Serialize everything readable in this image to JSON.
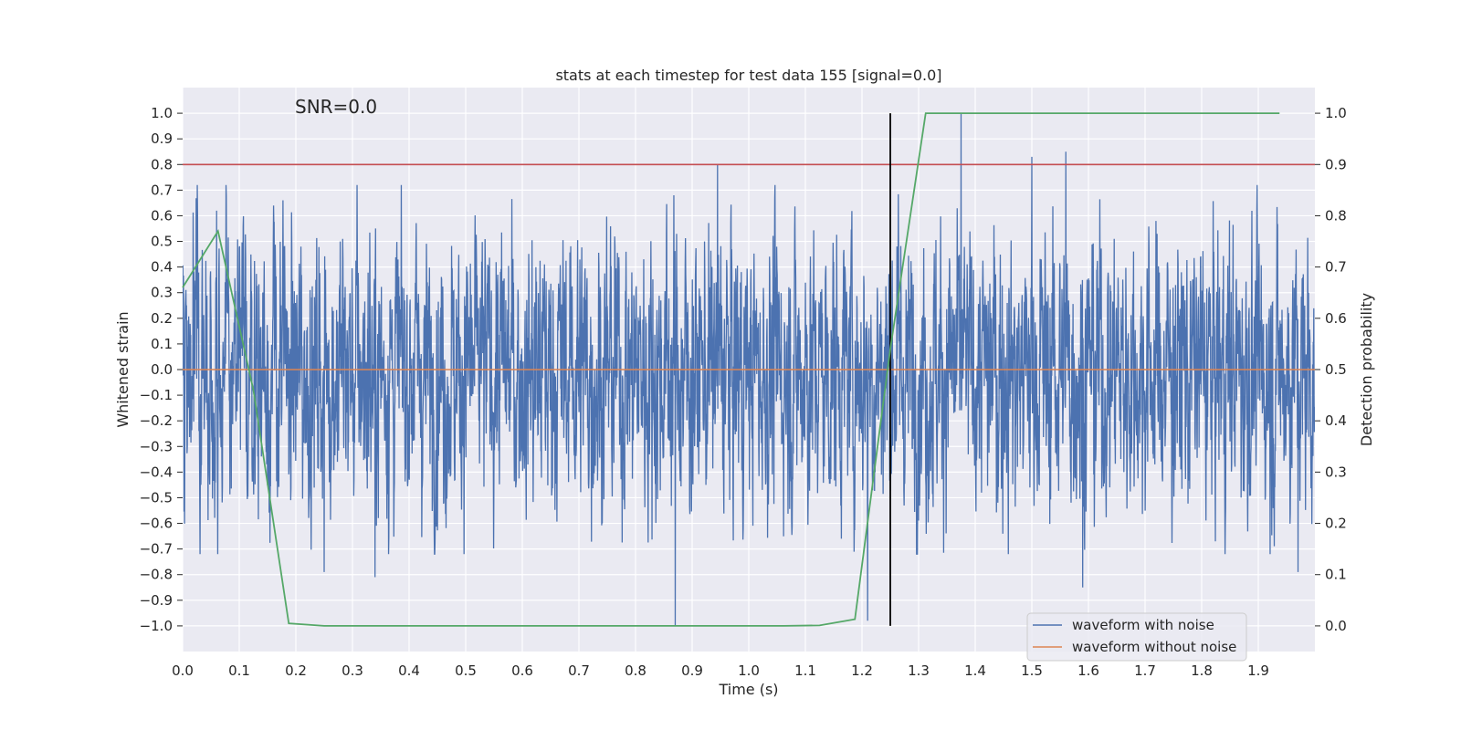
{
  "chart_data": {
    "type": "line",
    "title": "stats at each timestep for test data 155 [signal=0.0]",
    "annotation": "SNR=0.0",
    "xlabel": "Time (s)",
    "ylabel_left": "Whitened strain",
    "ylabel_right": "Detection probability",
    "xlim": [
      0.0,
      2.0
    ],
    "ylim_left": [
      -1.1,
      1.1
    ],
    "ylim_right": [
      -0.05,
      1.05
    ],
    "x_ticks": [
      0.0,
      0.1,
      0.2,
      0.3,
      0.4,
      0.5,
      0.6,
      0.7,
      0.8,
      0.9,
      1.0,
      1.1,
      1.2,
      1.3,
      1.4,
      1.5,
      1.6,
      1.7,
      1.8,
      1.9
    ],
    "x_tick_labels": [
      "0.0",
      "0.1",
      "0.2",
      "0.3",
      "0.4",
      "0.5",
      "0.6",
      "0.7",
      "0.8",
      "0.9",
      "1.0",
      "1.1",
      "1.2",
      "1.3",
      "1.4",
      "1.5",
      "1.6",
      "1.7",
      "1.8",
      "1.9"
    ],
    "y_left_ticks": [
      1.0,
      0.9,
      0.8,
      0.7,
      0.6,
      0.5,
      0.4,
      0.3,
      0.2,
      0.1,
      0.0,
      -0.1,
      -0.2,
      -0.3,
      -0.4,
      -0.5,
      -0.6,
      -0.7,
      -0.8,
      -0.9,
      -1.0
    ],
    "y_left_tick_labels": [
      "1.0",
      "0.9",
      "0.8",
      "0.7",
      "0.6",
      "0.5",
      "0.4",
      "0.3",
      "0.2",
      "0.1",
      "0.0",
      "−0.1",
      "−0.2",
      "−0.3",
      "−0.4",
      "−0.5",
      "−0.6",
      "−0.7",
      "−0.8",
      "−0.9",
      "−1.0"
    ],
    "y_right_ticks": [
      1.0,
      0.9,
      0.8,
      0.7,
      0.6,
      0.5,
      0.4,
      0.3,
      0.2,
      0.1,
      0.0
    ],
    "y_right_tick_labels": [
      "1.0",
      "0.9",
      "0.8",
      "0.7",
      "0.6",
      "0.5",
      "0.4",
      "0.3",
      "0.2",
      "0.1",
      "0.0"
    ],
    "grid": true,
    "legend_position": "bottom-right",
    "noisy_waveform": {
      "name": "waveform with noise",
      "color": "#4c72b0",
      "n_samples": 4096,
      "amplitude_range": [
        -1.0,
        1.0
      ],
      "peaks": [
        {
          "x": 1.375,
          "y": 1.0
        },
        {
          "x": 0.87,
          "y": -1.0
        },
        {
          "x": 0.945,
          "y": 0.8
        },
        {
          "x": 1.21,
          "y": -0.98
        },
        {
          "x": 1.5,
          "y": 0.83
        },
        {
          "x": 1.56,
          "y": 0.85
        },
        {
          "x": 1.59,
          "y": -0.85
        },
        {
          "x": 0.25,
          "y": 0.74
        },
        {
          "x": 0.25,
          "y": -0.79
        },
        {
          "x": 0.34,
          "y": -0.81
        },
        {
          "x": 0.06,
          "y": 0.62
        },
        {
          "x": 1.97,
          "y": -0.79
        }
      ]
    },
    "clean_waveform": {
      "name": "waveform without noise",
      "color": "#dd8452",
      "value": 0.0
    },
    "threshold": {
      "y_right": 0.9,
      "color": "#c44e52"
    },
    "event_marker": {
      "x": 1.25,
      "y_range": [
        -1.0,
        1.0
      ],
      "color": "#000000"
    },
    "detection_probability": {
      "color": "#55a868",
      "x": [
        0.0,
        0.0625,
        0.125,
        0.1875,
        0.25,
        0.3125,
        0.375,
        0.4375,
        0.5,
        0.5625,
        0.625,
        0.6875,
        0.75,
        0.8125,
        0.875,
        0.9375,
        1.0,
        1.0625,
        1.125,
        1.1875,
        1.25,
        1.3125,
        1.375,
        1.4375,
        1.5,
        1.5625,
        1.625,
        1.6875,
        1.75,
        1.8125,
        1.875,
        1.9375
      ],
      "y": [
        0.66,
        0.77,
        0.46,
        0.005,
        0.0,
        0.0,
        0.0,
        0.0,
        0.0,
        0.0,
        0.0,
        0.0,
        0.0,
        0.0,
        0.0,
        0.0,
        0.0,
        0.0,
        0.001,
        0.013,
        0.54,
        1.0,
        1.0,
        1.0,
        1.0,
        1.0,
        1.0,
        1.0,
        1.0,
        1.0,
        1.0,
        1.0
      ]
    }
  }
}
